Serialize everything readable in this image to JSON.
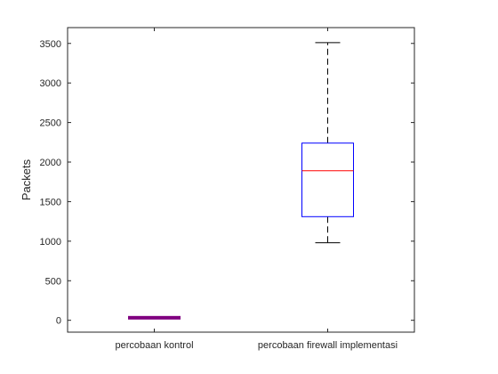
{
  "chart_data": {
    "type": "box",
    "ylabel": "Packets",
    "xlabel": "",
    "title": "",
    "ylim": [
      -150,
      3700
    ],
    "yticks": [
      0,
      500,
      1000,
      1500,
      2000,
      2500,
      3000,
      3500
    ],
    "grid": false,
    "colors": {
      "box": "#0000ff",
      "median": "#ff0000",
      "whisker": "#000000",
      "compressed_box": "#800080",
      "axis": "#262626"
    },
    "categories": [
      "percobaan kontrol",
      "percobaan firewall implementasi"
    ],
    "boxes": [
      {
        "category": "percobaan kontrol",
        "min": 20,
        "q1": 28,
        "median": 32,
        "q3": 36,
        "max": 45
      },
      {
        "category": "percobaan firewall implementasi",
        "min": 980,
        "q1": 1310,
        "median": 1890,
        "q3": 2240,
        "max": 3510
      }
    ]
  }
}
